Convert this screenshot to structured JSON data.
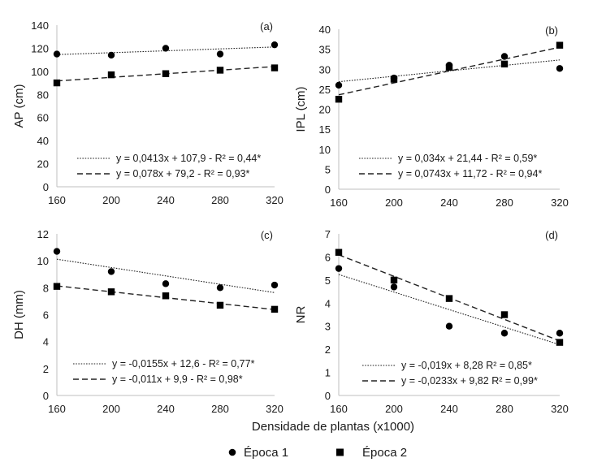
{
  "figure": {
    "xlabel": "Densidade de plantas (x1000)",
    "legend": [
      {
        "label": "Época 1",
        "marker": "circle"
      },
      {
        "label": "Época 2",
        "marker": "square"
      }
    ]
  },
  "chart_data": [
    {
      "type": "scatter",
      "panel_label": "(a)",
      "ylabel": "AP (cm)",
      "x": [
        160,
        200,
        240,
        280,
        320
      ],
      "xticks": [
        "160",
        "200",
        "240",
        "280",
        "320"
      ],
      "ylim": [
        0,
        140
      ],
      "yticks": [
        "0",
        "20",
        "40",
        "60",
        "80",
        "100",
        "120",
        "140"
      ],
      "series": [
        {
          "name": "Época 1",
          "marker": "circle",
          "values": [
            115,
            114,
            120,
            115,
            123
          ],
          "fit": {
            "slope": 0.0413,
            "intercept": 107.9,
            "style": "dotted"
          },
          "equation": "y = 0,0413x + 107,9 - R² = 0,44*"
        },
        {
          "name": "Época 2",
          "marker": "square",
          "values": [
            90,
            97,
            98,
            101,
            103
          ],
          "fit": {
            "slope": 0.078,
            "intercept": 79.2,
            "style": "dashed"
          },
          "equation": "y = 0,078x + 79,2 - R² = 0,93*"
        }
      ]
    },
    {
      "type": "scatter",
      "panel_label": "(b)",
      "ylabel": "IPL (cm)",
      "x": [
        160,
        200,
        240,
        280,
        320
      ],
      "xticks": [
        "160",
        "200",
        "240",
        "280",
        "320"
      ],
      "ylim": [
        0,
        40
      ],
      "yticks": [
        "0",
        "5",
        "10",
        "15",
        "20",
        "25",
        "30",
        "35",
        "40"
      ],
      "series": [
        {
          "name": "Época 1",
          "marker": "circle",
          "values": [
            26,
            27.8,
            31,
            33.2,
            30.2
          ],
          "fit": {
            "slope": 0.034,
            "intercept": 21.44,
            "style": "dotted"
          },
          "equation": "y = 0,034x + 21,44 - R² = 0,59*"
        },
        {
          "name": "Época 2",
          "marker": "square",
          "values": [
            22.5,
            27.5,
            30.5,
            31.3,
            36
          ],
          "fit": {
            "slope": 0.0743,
            "intercept": 11.72,
            "style": "dashed"
          },
          "equation": "y = 0,0743x + 11,72 - R² = 0,94*"
        }
      ]
    },
    {
      "type": "scatter",
      "panel_label": "(c)",
      "ylabel": "DH (mm)",
      "x": [
        160,
        200,
        240,
        280,
        320
      ],
      "xticks": [
        "160",
        "200",
        "240",
        "280",
        "320"
      ],
      "ylim": [
        0,
        12
      ],
      "yticks": [
        "0",
        "2",
        "4",
        "6",
        "8",
        "10",
        "12"
      ],
      "series": [
        {
          "name": "Época 1",
          "marker": "circle",
          "values": [
            10.7,
            9.2,
            8.3,
            8.0,
            8.2
          ],
          "fit": {
            "slope": -0.0155,
            "intercept": 12.6,
            "style": "dotted"
          },
          "equation": "y = -0,0155x + 12,6 - R² = 0,77*"
        },
        {
          "name": "Época 2",
          "marker": "square",
          "values": [
            8.1,
            7.7,
            7.4,
            6.7,
            6.4
          ],
          "fit": {
            "slope": -0.011,
            "intercept": 9.9,
            "style": "dashed"
          },
          "equation": "y = -0,011x + 9,9 - R² = 0,98*"
        }
      ]
    },
    {
      "type": "scatter",
      "panel_label": "(d)",
      "ylabel": "NR",
      "x": [
        160,
        200,
        240,
        280,
        320
      ],
      "xticks": [
        "160",
        "200",
        "240",
        "280",
        "320"
      ],
      "ylim": [
        0,
        7
      ],
      "yticks": [
        "0",
        "1",
        "2",
        "3",
        "4",
        "5",
        "6",
        "7"
      ],
      "series": [
        {
          "name": "Época 1",
          "marker": "circle",
          "values": [
            5.5,
            4.7,
            3.0,
            2.7,
            2.7
          ],
          "fit": {
            "slope": -0.019,
            "intercept": 8.28,
            "style": "dotted"
          },
          "equation": "y = -0,019x + 8,28 R² = 0,85*"
        },
        {
          "name": "Época 2",
          "marker": "square",
          "values": [
            6.2,
            5.0,
            4.2,
            3.5,
            2.3
          ],
          "fit": {
            "slope": -0.0233,
            "intercept": 9.82,
            "style": "dashed"
          },
          "equation": "y = -0,0233x + 9,82 R² = 0,99*"
        }
      ]
    }
  ]
}
